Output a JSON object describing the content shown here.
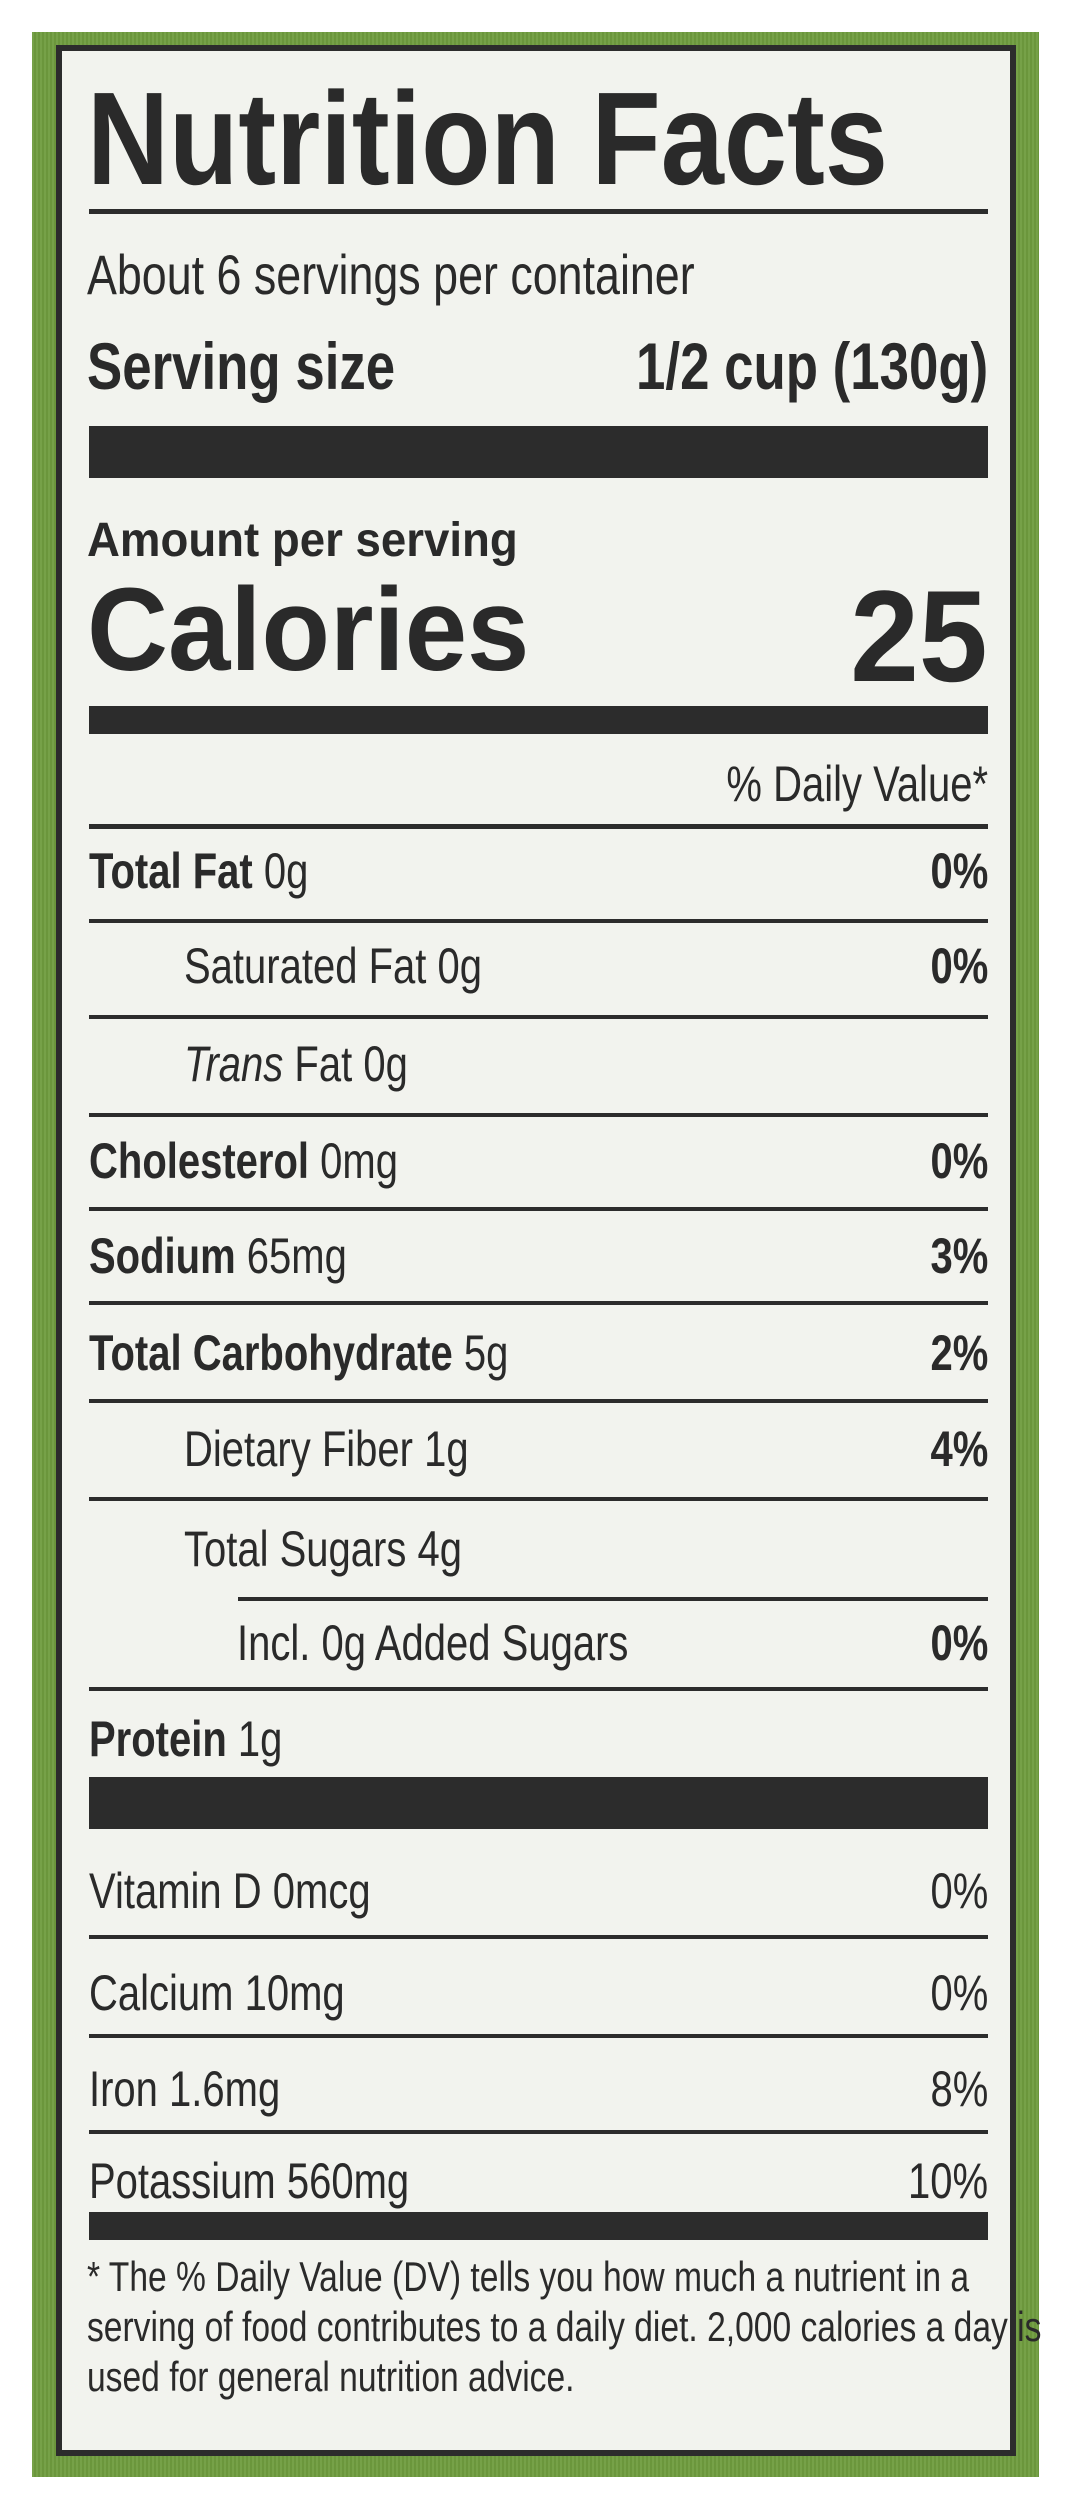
{
  "colors": {
    "background": "#6f9c3e",
    "label": "#f2f3ee",
    "ink": "#2a2a2a"
  },
  "title": "Nutrition Facts",
  "servings_per_container": "About 6 servings per container",
  "serving_size_label": "Serving size",
  "serving_size_value": "1/2 cup (130g)",
  "amount_per_serving": "Amount per serving",
  "calories_label": "Calories",
  "calories_value": "25",
  "dv_header": "% Daily Value*",
  "nutrients": [
    {
      "name": "Total Fat",
      "amount": "0g",
      "dv": "0%"
    },
    {
      "name": "Saturated Fat",
      "amount": "0g",
      "dv": "0%"
    },
    {
      "name": "Trans",
      "name_suffix": "Fat",
      "amount": "0g",
      "dv": ""
    },
    {
      "name": "Cholesterol",
      "amount": "0mg",
      "dv": "0%"
    },
    {
      "name": "Sodium",
      "amount": "65mg",
      "dv": "3%"
    },
    {
      "name": "Total Carbohydrate",
      "amount": "5g",
      "dv": "2%"
    },
    {
      "name": "Dietary Fiber",
      "amount": "1g",
      "dv": "4%"
    },
    {
      "name": "Total Sugars",
      "amount": "4g",
      "dv": ""
    },
    {
      "name": "Incl. 0g Added Sugars",
      "amount": "",
      "dv": "0%"
    },
    {
      "name": "Protein",
      "amount": "1g",
      "dv": ""
    }
  ],
  "micronutrients": [
    {
      "label": "Vitamin D 0mcg",
      "dv": "0%"
    },
    {
      "label": "Calcium 10mg",
      "dv": "0%"
    },
    {
      "label": "Iron 1.6mg",
      "dv": "8%"
    },
    {
      "label": "Potassium 560mg",
      "dv": "10%"
    }
  ],
  "footnote": [
    "*  The % Daily Value (DV) tells you how much a nutrient in a",
    "serving of food contributes to a daily diet. 2,000 calories a day is",
    "used for general nutrition advice."
  ]
}
